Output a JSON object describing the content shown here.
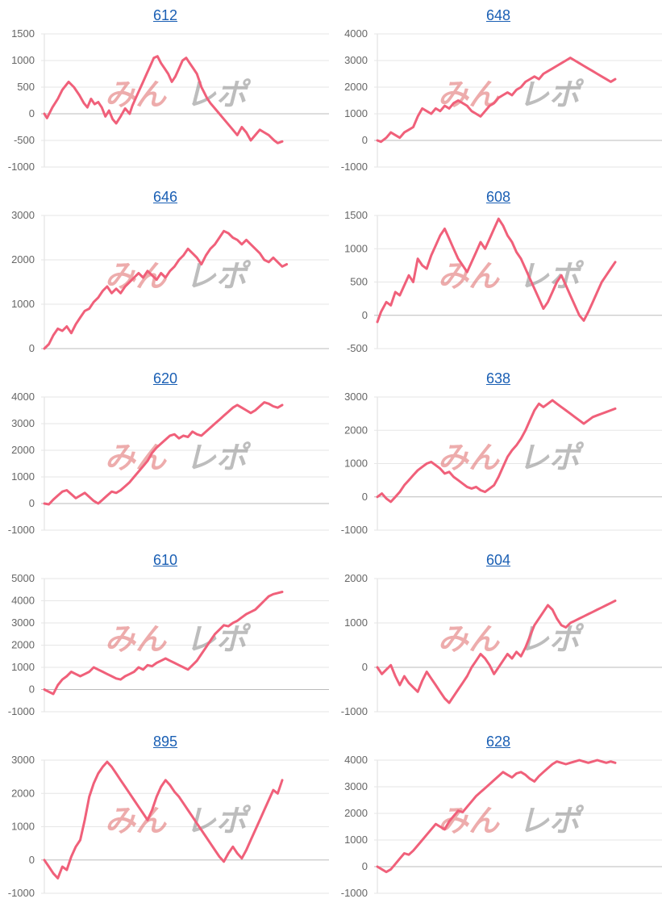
{
  "chart_data": [
    {
      "type": "line",
      "title": "612",
      "ylim": [
        -1000,
        1500
      ],
      "ticks": [
        1500,
        1000,
        500,
        0,
        -500,
        -1000
      ],
      "x": [
        0,
        3,
        9,
        15,
        20,
        27,
        33,
        39,
        44,
        48,
        52,
        56,
        60,
        64,
        68,
        72,
        76,
        80,
        85,
        90,
        95,
        98,
        102,
        106,
        110,
        114,
        118,
        122,
        126,
        130,
        134,
        138,
        142,
        146,
        150,
        154,
        158,
        162,
        166,
        170,
        173,
        175,
        178,
        181,
        185,
        190,
        195,
        200,
        205,
        210,
        215,
        220,
        225,
        230,
        235,
        240,
        245,
        250,
        253,
        256,
        260,
        265
      ],
      "y": [
        0,
        -80,
        120,
        280,
        450,
        600,
        500,
        350,
        200,
        120,
        280,
        180,
        220,
        120,
        -50,
        60,
        -100,
        -180,
        -50,
        100,
        0,
        150,
        300,
        450,
        600,
        750,
        900,
        1050,
        1080,
        950,
        850,
        750,
        600,
        700,
        850,
        1000,
        1050,
        950,
        850,
        750,
        600,
        500,
        400,
        300,
        200,
        100,
        0,
        -100,
        -200,
        -300,
        -400,
        -250,
        -350,
        -500,
        -400,
        -300,
        -350,
        -400,
        -450,
        -500,
        -550,
        -520
      ]
    },
    {
      "type": "line",
      "title": "648",
      "ylim": [
        -1000,
        4000
      ],
      "ticks": [
        4000,
        3000,
        2000,
        1000,
        0,
        -1000
      ],
      "x": [
        0,
        4,
        10,
        15,
        20,
        25,
        30,
        35,
        40,
        45,
        50,
        55,
        60,
        65,
        70,
        75,
        80,
        85,
        90,
        95,
        100,
        105,
        110,
        115,
        120,
        125,
        130,
        135,
        140,
        145,
        150,
        155,
        160,
        165,
        170,
        175,
        180,
        185,
        190,
        195,
        200,
        205,
        210,
        215,
        220,
        225,
        230,
        235,
        240,
        245,
        250,
        255,
        260,
        265
      ],
      "y": [
        0,
        -50,
        100,
        300,
        200,
        100,
        300,
        400,
        500,
        900,
        1200,
        1100,
        1000,
        1200,
        1100,
        1300,
        1200,
        1400,
        1500,
        1400,
        1300,
        1100,
        1000,
        900,
        1100,
        1300,
        1400,
        1600,
        1700,
        1800,
        1700,
        1900,
        2000,
        2200,
        2300,
        2400,
        2300,
        2500,
        2600,
        2700,
        2800,
        2900,
        3000,
        3100,
        3000,
        2900,
        2800,
        2700,
        2600,
        2500,
        2400,
        2300,
        2200,
        2300
      ]
    },
    {
      "type": "line",
      "title": "646",
      "ylim": [
        0,
        3000
      ],
      "ticks": [
        3000,
        2000,
        1000,
        0
      ],
      "x": [
        0,
        5,
        10,
        15,
        20,
        25,
        30,
        35,
        40,
        45,
        50,
        55,
        60,
        65,
        70,
        75,
        80,
        85,
        90,
        95,
        100,
        105,
        110,
        115,
        120,
        125,
        130,
        135,
        140,
        145,
        150,
        155,
        160,
        165,
        170,
        175,
        180,
        185,
        190,
        195,
        200,
        205,
        210,
        215,
        220,
        225,
        230,
        235,
        240,
        245,
        250,
        255,
        260,
        265,
        270
      ],
      "y": [
        0,
        100,
        300,
        450,
        400,
        500,
        350,
        550,
        700,
        850,
        900,
        1050,
        1150,
        1300,
        1400,
        1250,
        1350,
        1250,
        1400,
        1500,
        1600,
        1700,
        1600,
        1750,
        1650,
        1550,
        1700,
        1600,
        1750,
        1850,
        2000,
        2100,
        2250,
        2150,
        2050,
        1900,
        2100,
        2250,
        2350,
        2500,
        2650,
        2600,
        2500,
        2450,
        2350,
        2450,
        2350,
        2250,
        2150,
        2000,
        1950,
        2050,
        1950,
        1850,
        1900
      ]
    },
    {
      "type": "line",
      "title": "608",
      "ylim": [
        -500,
        1500
      ],
      "ticks": [
        1500,
        1000,
        500,
        0,
        -500
      ],
      "x": [
        0,
        4,
        10,
        15,
        20,
        25,
        30,
        35,
        40,
        45,
        50,
        55,
        60,
        65,
        70,
        75,
        80,
        85,
        90,
        95,
        100,
        105,
        110,
        115,
        120,
        125,
        130,
        135,
        140,
        145,
        150,
        155,
        160,
        165,
        170,
        175,
        180,
        185,
        190,
        195,
        200,
        205,
        210,
        215,
        220,
        225,
        230,
        235,
        240,
        245,
        250,
        255,
        260,
        265
      ],
      "y": [
        -100,
        50,
        200,
        150,
        350,
        300,
        450,
        600,
        500,
        850,
        750,
        700,
        900,
        1050,
        1200,
        1300,
        1150,
        1000,
        850,
        750,
        650,
        800,
        950,
        1100,
        1000,
        1150,
        1300,
        1450,
        1350,
        1200,
        1100,
        950,
        850,
        700,
        550,
        400,
        250,
        100,
        200,
        350,
        500,
        600,
        450,
        300,
        150,
        0,
        -80,
        50,
        200,
        350,
        500,
        600,
        700,
        800
      ]
    },
    {
      "type": "line",
      "title": "620",
      "ylim": [
        -1000,
        4000
      ],
      "ticks": [
        4000,
        3000,
        2000,
        1000,
        0,
        -1000
      ],
      "x": [
        0,
        5,
        10,
        15,
        20,
        25,
        30,
        35,
        40,
        45,
        50,
        55,
        60,
        65,
        70,
        75,
        80,
        85,
        90,
        95,
        100,
        105,
        110,
        115,
        120,
        125,
        130,
        135,
        140,
        145,
        150,
        155,
        160,
        165,
        170,
        175,
        180,
        185,
        190,
        195,
        200,
        205,
        210,
        215,
        220,
        225,
        230,
        235,
        240,
        245,
        250,
        255,
        260,
        265
      ],
      "y": [
        0,
        -30,
        150,
        300,
        450,
        500,
        350,
        200,
        300,
        400,
        250,
        100,
        0,
        150,
        300,
        450,
        400,
        500,
        650,
        800,
        1000,
        1200,
        1400,
        1600,
        1900,
        2100,
        2250,
        2400,
        2550,
        2600,
        2450,
        2550,
        2500,
        2700,
        2600,
        2550,
        2700,
        2850,
        3000,
        3150,
        3300,
        3450,
        3600,
        3700,
        3600,
        3500,
        3400,
        3500,
        3650,
        3800,
        3750,
        3650,
        3600,
        3700
      ]
    },
    {
      "type": "line",
      "title": "638",
      "ylim": [
        -1000,
        3000
      ],
      "ticks": [
        3000,
        2000,
        1000,
        0,
        -1000
      ],
      "x": [
        0,
        5,
        10,
        15,
        20,
        25,
        30,
        35,
        40,
        45,
        50,
        55,
        60,
        65,
        70,
        75,
        80,
        85,
        90,
        95,
        100,
        105,
        110,
        115,
        120,
        125,
        130,
        135,
        140,
        145,
        150,
        155,
        160,
        165,
        170,
        175,
        180,
        185,
        190,
        195,
        200,
        205,
        210,
        215,
        220,
        225,
        230,
        235,
        240,
        245,
        250,
        255,
        260,
        265
      ],
      "y": [
        0,
        100,
        -50,
        -150,
        0,
        150,
        350,
        500,
        650,
        800,
        900,
        1000,
        1050,
        950,
        850,
        700,
        750,
        600,
        500,
        400,
        300,
        250,
        300,
        200,
        150,
        250,
        350,
        600,
        900,
        1200,
        1400,
        1550,
        1750,
        2000,
        2300,
        2600,
        2800,
        2700,
        2800,
        2900,
        2800,
        2700,
        2600,
        2500,
        2400,
        2300,
        2200,
        2300,
        2400,
        2450,
        2500,
        2550,
        2600,
        2650
      ]
    },
    {
      "type": "line",
      "title": "610",
      "ylim": [
        -1000,
        5000
      ],
      "ticks": [
        5000,
        4000,
        3000,
        2000,
        1000,
        0,
        -1000
      ],
      "x": [
        0,
        5,
        10,
        15,
        20,
        25,
        30,
        35,
        40,
        45,
        50,
        55,
        60,
        65,
        70,
        75,
        80,
        85,
        90,
        95,
        100,
        105,
        110,
        115,
        120,
        125,
        130,
        135,
        140,
        145,
        150,
        155,
        160,
        165,
        170,
        175,
        180,
        185,
        190,
        195,
        200,
        205,
        210,
        215,
        220,
        225,
        230,
        235,
        240,
        245,
        250,
        255,
        260,
        265
      ],
      "y": [
        0,
        -100,
        -200,
        200,
        450,
        600,
        800,
        700,
        600,
        700,
        800,
        1000,
        900,
        800,
        700,
        600,
        500,
        450,
        600,
        700,
        800,
        1000,
        900,
        1100,
        1050,
        1200,
        1300,
        1400,
        1300,
        1200,
        1100,
        1000,
        900,
        1100,
        1300,
        1600,
        1900,
        2200,
        2500,
        2700,
        2900,
        2850,
        3000,
        3100,
        3250,
        3400,
        3500,
        3600,
        3800,
        4000,
        4200,
        4300,
        4350,
        4400
      ]
    },
    {
      "type": "line",
      "title": "604",
      "ylim": [
        -1000,
        2000
      ],
      "ticks": [
        2000,
        1000,
        0,
        -1000
      ],
      "x": [
        0,
        5,
        10,
        15,
        20,
        25,
        30,
        35,
        40,
        45,
        50,
        55,
        60,
        65,
        70,
        75,
        80,
        85,
        90,
        95,
        100,
        105,
        110,
        115,
        120,
        125,
        130,
        135,
        140,
        145,
        150,
        155,
        160,
        165,
        170,
        175,
        180,
        185,
        190,
        195,
        200,
        205,
        210,
        215,
        220,
        225,
        230,
        235,
        240,
        245,
        250,
        255,
        260,
        265
      ],
      "y": [
        0,
        -150,
        -50,
        50,
        -200,
        -400,
        -200,
        -350,
        -450,
        -550,
        -300,
        -100,
        -250,
        -400,
        -550,
        -700,
        -800,
        -650,
        -500,
        -350,
        -200,
        0,
        150,
        300,
        200,
        50,
        -150,
        0,
        150,
        300,
        200,
        350,
        250,
        450,
        700,
        950,
        1100,
        1250,
        1400,
        1300,
        1100,
        950,
        900,
        1000,
        1050,
        1100,
        1150,
        1200,
        1250,
        1300,
        1350,
        1400,
        1450,
        1500
      ]
    },
    {
      "type": "line",
      "title": "895",
      "ylim": [
        -1000,
        3000
      ],
      "ticks": [
        3000,
        2000,
        1000,
        0,
        -1000
      ],
      "x": [
        0,
        5,
        10,
        15,
        20,
        25,
        30,
        35,
        40,
        45,
        50,
        55,
        60,
        65,
        70,
        75,
        80,
        85,
        90,
        95,
        100,
        105,
        110,
        115,
        120,
        125,
        130,
        135,
        140,
        145,
        150,
        155,
        160,
        165,
        170,
        175,
        180,
        185,
        190,
        195,
        200,
        205,
        210,
        215,
        220,
        225,
        230,
        235,
        240,
        245,
        250,
        255,
        260,
        265
      ],
      "y": [
        0,
        -200,
        -400,
        -550,
        -200,
        -300,
        100,
        400,
        600,
        1200,
        1900,
        2300,
        2600,
        2800,
        2950,
        2800,
        2600,
        2400,
        2200,
        2000,
        1800,
        1600,
        1400,
        1200,
        1500,
        1900,
        2200,
        2400,
        2250,
        2050,
        1900,
        1700,
        1500,
        1300,
        1100,
        900,
        700,
        500,
        300,
        100,
        -50,
        200,
        400,
        200,
        50,
        300,
        600,
        900,
        1200,
        1500,
        1800,
        2100,
        2000,
        2400
      ]
    },
    {
      "type": "line",
      "title": "628",
      "ylim": [
        -1000,
        4000
      ],
      "ticks": [
        4000,
        3000,
        2000,
        1000,
        0,
        -1000
      ],
      "x": [
        0,
        5,
        10,
        15,
        20,
        25,
        30,
        35,
        40,
        45,
        50,
        55,
        60,
        65,
        70,
        75,
        80,
        85,
        90,
        95,
        100,
        105,
        110,
        115,
        120,
        125,
        130,
        135,
        140,
        145,
        150,
        155,
        160,
        165,
        170,
        175,
        180,
        185,
        190,
        195,
        200,
        205,
        210,
        215,
        220,
        225,
        230,
        235,
        240,
        245,
        250,
        255,
        260,
        265
      ],
      "y": [
        0,
        -100,
        -200,
        -100,
        100,
        300,
        500,
        450,
        600,
        800,
        1000,
        1200,
        1400,
        1600,
        1500,
        1400,
        1700,
        1900,
        2100,
        2050,
        2250,
        2450,
        2650,
        2800,
        2950,
        3100,
        3250,
        3400,
        3550,
        3450,
        3350,
        3500,
        3550,
        3450,
        3300,
        3200,
        3400,
        3550,
        3700,
        3850,
        3950,
        3900,
        3850,
        3900,
        3950,
        4000,
        3950,
        3900,
        3950,
        4000,
        3950,
        3900,
        3950,
        3900
      ]
    }
  ]
}
